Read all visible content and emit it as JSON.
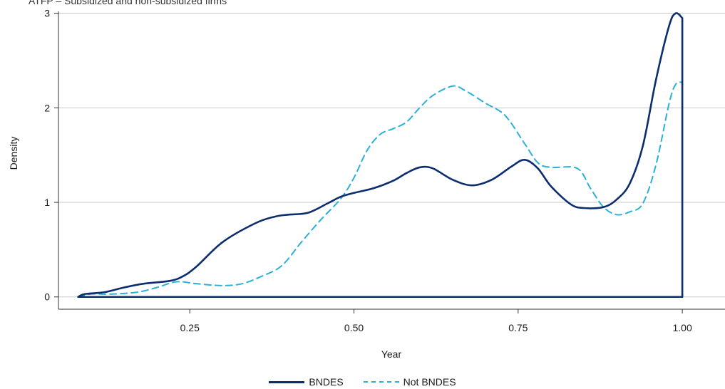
{
  "chart_data": {
    "type": "line",
    "title": "ATFP – Subsidized and non-subsidized firms",
    "xlabel": "Year",
    "ylabel": "Density",
    "xlim": [
      0.05,
      1.065
    ],
    "ylim": [
      -0.13,
      3.02
    ],
    "x_ticks": [
      0.25,
      0.5,
      0.75,
      1.0
    ],
    "x_tick_labels": [
      "0.25",
      "0.50",
      "0.75",
      "1.00"
    ],
    "y_ticks": [
      0,
      1,
      2,
      3
    ],
    "y_tick_labels": [
      "0",
      "1",
      "2",
      "3"
    ],
    "grid": "horizontal",
    "legend_position": "bottom-center",
    "series": [
      {
        "name": "BNDES",
        "color": "#0d2e6e",
        "style": "solid",
        "closed_to_baseline": true,
        "x": [
          0.08,
          0.09,
          0.12,
          0.15,
          0.18,
          0.22,
          0.24,
          0.26,
          0.3,
          0.35,
          0.38,
          0.4,
          0.43,
          0.46,
          0.48,
          0.5,
          0.53,
          0.56,
          0.58,
          0.6,
          0.62,
          0.65,
          0.68,
          0.71,
          0.74,
          0.76,
          0.78,
          0.8,
          0.83,
          0.85,
          0.88,
          0.9,
          0.92,
          0.94,
          0.96,
          0.98,
          0.99,
          1.0
        ],
        "values": [
          0.0,
          0.03,
          0.05,
          0.1,
          0.14,
          0.17,
          0.22,
          0.32,
          0.58,
          0.78,
          0.85,
          0.87,
          0.89,
          0.99,
          1.06,
          1.1,
          1.15,
          1.23,
          1.31,
          1.37,
          1.36,
          1.24,
          1.18,
          1.24,
          1.38,
          1.45,
          1.36,
          1.17,
          0.98,
          0.94,
          0.95,
          1.03,
          1.2,
          1.6,
          2.3,
          2.87,
          3.0,
          2.95
        ]
      },
      {
        "name": "Not BNDES",
        "color": "#2bb0d8",
        "style": "dashed",
        "x": [
          0.08,
          0.1,
          0.13,
          0.17,
          0.2,
          0.23,
          0.26,
          0.3,
          0.33,
          0.36,
          0.39,
          0.42,
          0.45,
          0.48,
          0.5,
          0.52,
          0.54,
          0.56,
          0.58,
          0.6,
          0.62,
          0.65,
          0.67,
          0.7,
          0.73,
          0.76,
          0.78,
          0.8,
          0.84,
          0.86,
          0.88,
          0.9,
          0.92,
          0.94,
          0.96,
          0.98,
          0.99,
          1.0
        ],
        "values": [
          0.0,
          0.03,
          0.03,
          0.05,
          0.1,
          0.16,
          0.14,
          0.12,
          0.14,
          0.22,
          0.33,
          0.58,
          0.82,
          1.04,
          1.26,
          1.55,
          1.72,
          1.78,
          1.85,
          2.0,
          2.13,
          2.23,
          2.18,
          2.05,
          1.92,
          1.62,
          1.42,
          1.37,
          1.36,
          1.15,
          0.95,
          0.87,
          0.9,
          0.99,
          1.4,
          2.05,
          2.25,
          2.27
        ]
      }
    ]
  }
}
